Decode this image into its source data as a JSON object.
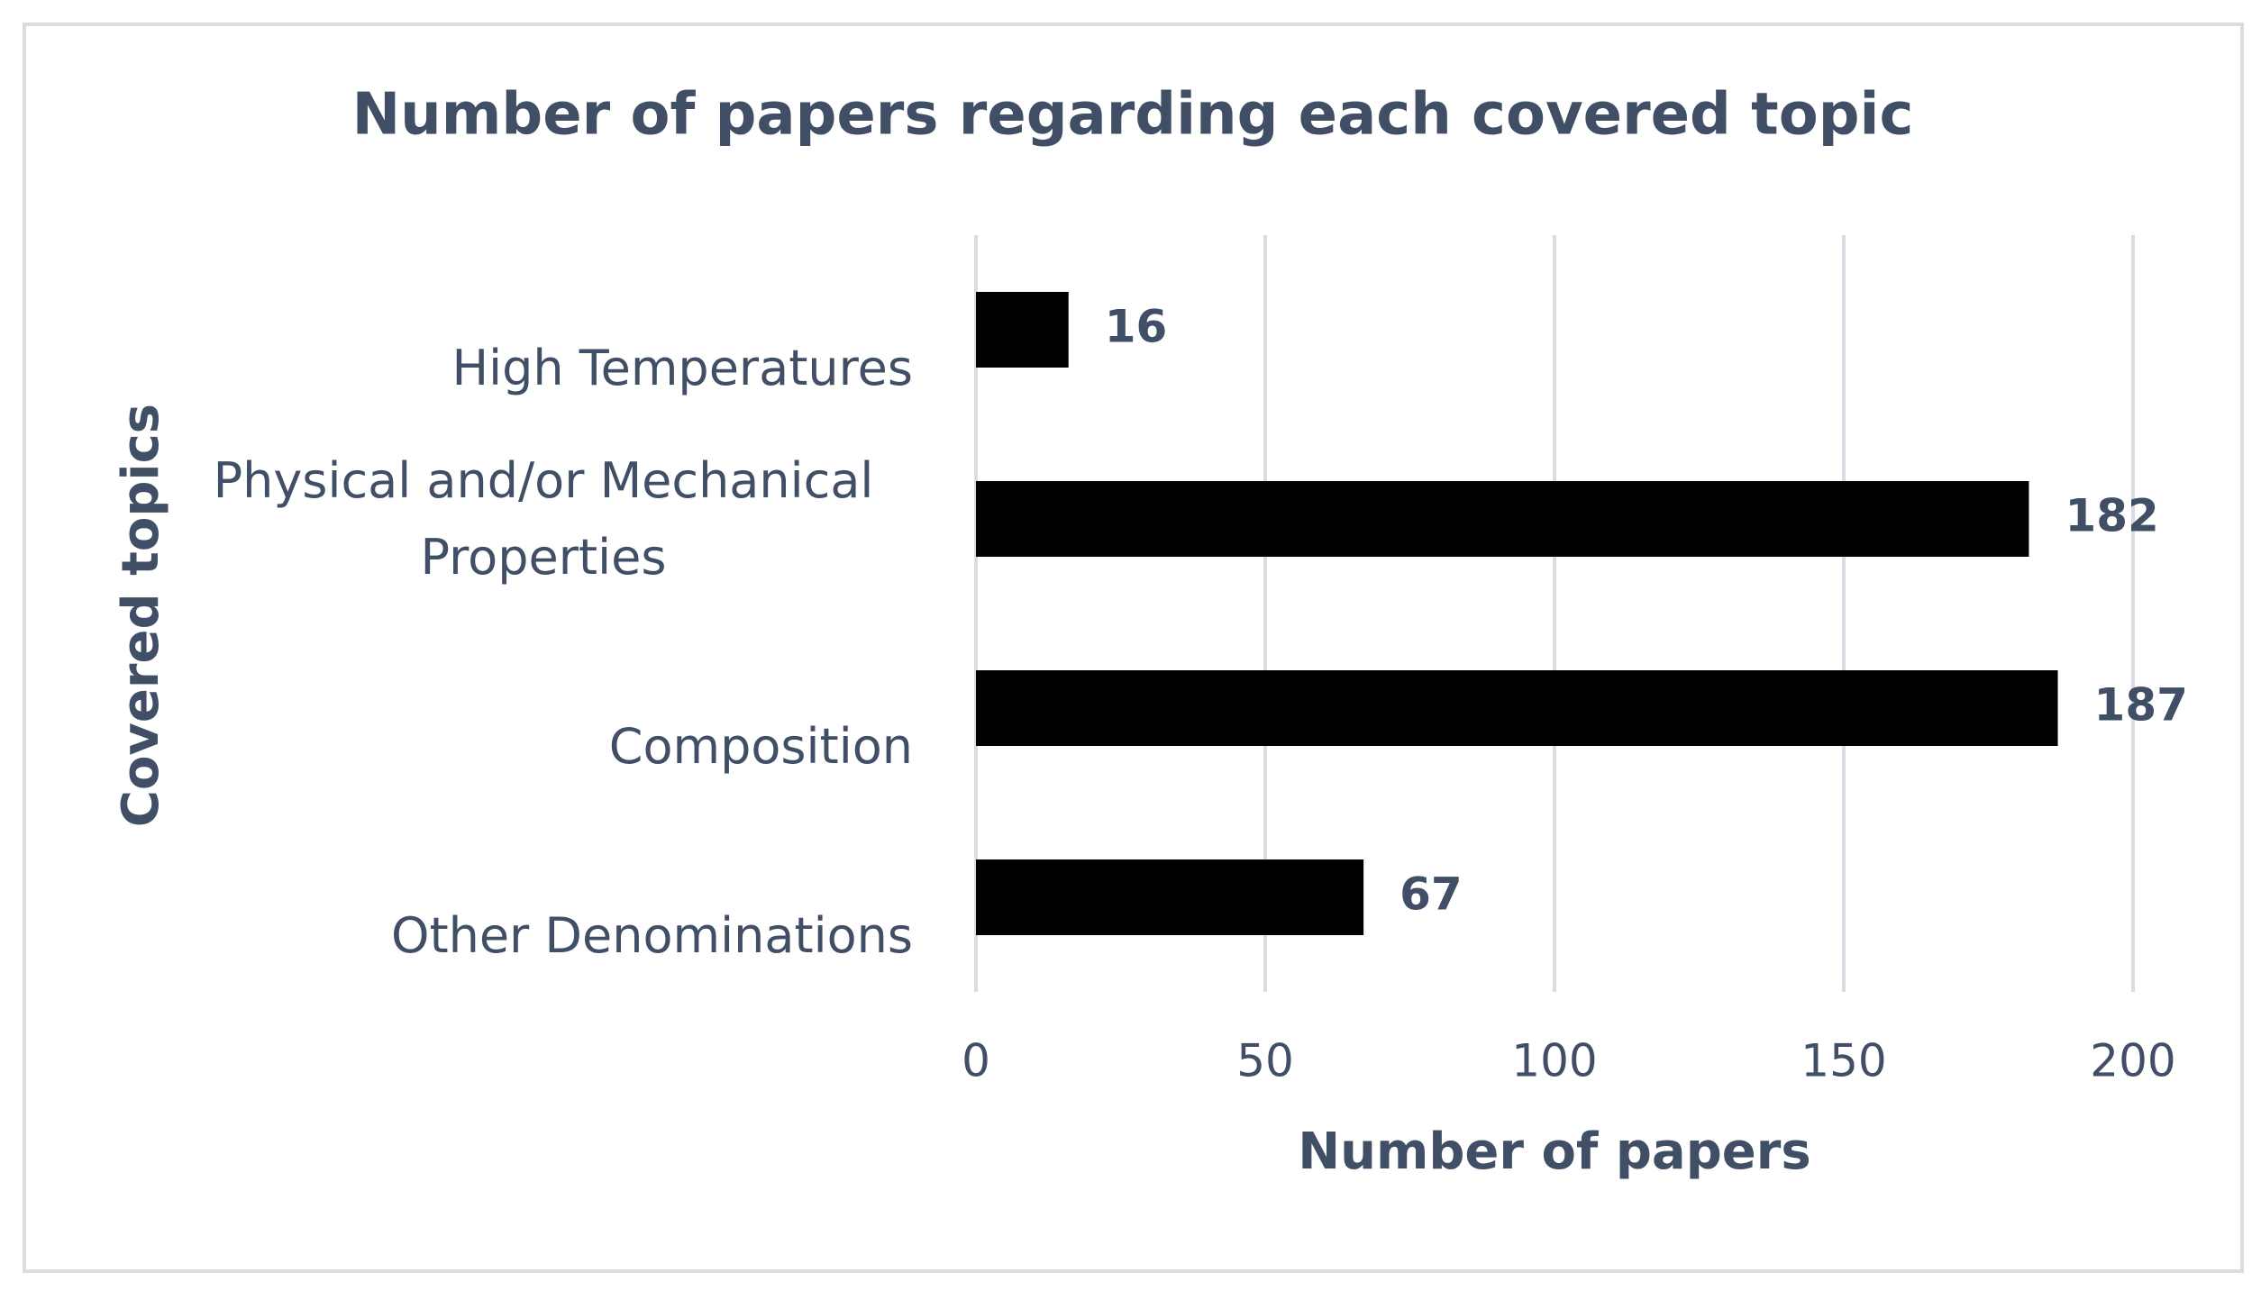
{
  "chart_data": {
    "type": "bar",
    "orientation": "horizontal",
    "title": "Number of papers regarding each covered topic",
    "x_label": "Number of papers",
    "y_label": "Covered topics",
    "categories": [
      "High Temperatures",
      "Physical and/or Mechanical Properties",
      "Composition",
      "Other Denominations"
    ],
    "values": [
      16,
      182,
      187,
      67
    ],
    "color": "#000000",
    "xlim": [
      0,
      200
    ],
    "xticks": [
      0,
      50,
      100,
      150,
      200
    ],
    "grid": true
  }
}
